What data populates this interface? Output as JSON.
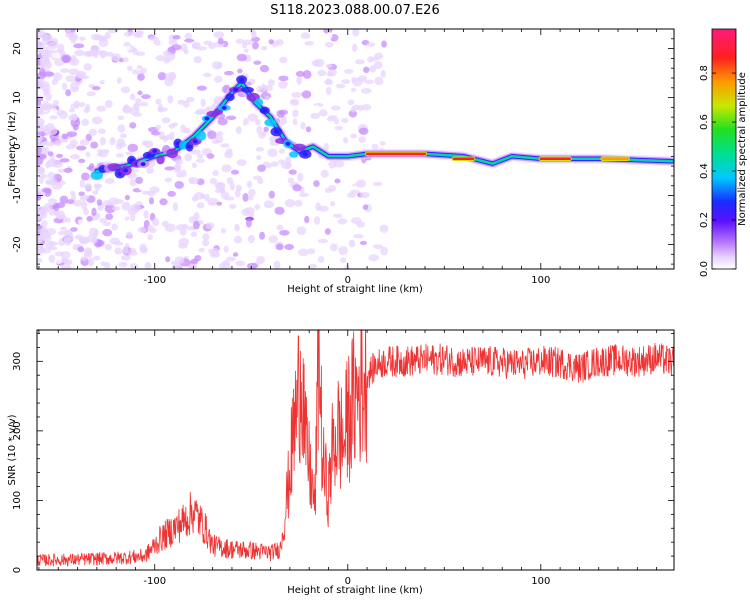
{
  "page_title": "S118.2023.088.00.07.E26",
  "colors": {
    "snr_line": "#ee3333",
    "colormap": [
      "#ffffff",
      "#e8d4ff",
      "#c78cff",
      "#8a2be2",
      "#2b1cff",
      "#00c8ff",
      "#00e0a0",
      "#20e020",
      "#c8e800",
      "#ff9a00",
      "#ff2020",
      "#ff1a7a"
    ]
  },
  "chart_data": [
    {
      "type": "heatmap",
      "xlabel": "Height of straight line (km)",
      "ylabel": "Frequency (Hz)",
      "xlim": [
        -161,
        169
      ],
      "ylim": [
        -25,
        24
      ],
      "xticks": [
        -100,
        0,
        100
      ],
      "yticks": [
        -20,
        -10,
        0,
        10,
        20
      ],
      "colorbar": {
        "label": "Normalized spectral amplitude",
        "range": [
          0.0,
          0.98
        ],
        "ticks": [
          0.0,
          0.2,
          0.4,
          0.6,
          0.8
        ]
      },
      "signal_track": [
        {
          "x": -130,
          "y": -5
        },
        {
          "x": -115,
          "y": -4
        },
        {
          "x": -100,
          "y": -2
        },
        {
          "x": -90,
          "y": -1
        },
        {
          "x": -80,
          "y": 2
        },
        {
          "x": -70,
          "y": 6
        },
        {
          "x": -60,
          "y": 11
        },
        {
          "x": -55,
          "y": 13
        },
        {
          "x": -48,
          "y": 9
        },
        {
          "x": -40,
          "y": 6
        },
        {
          "x": -32,
          "y": 1
        },
        {
          "x": -25,
          "y": -1
        },
        {
          "x": -18,
          "y": 0
        },
        {
          "x": -10,
          "y": -2
        },
        {
          "x": 0,
          "y": -2
        },
        {
          "x": 10,
          "y": -1.5
        },
        {
          "x": 40,
          "y": -1.5
        },
        {
          "x": 60,
          "y": -2
        },
        {
          "x": 75,
          "y": -3.5
        },
        {
          "x": 85,
          "y": -2
        },
        {
          "x": 100,
          "y": -2.5
        },
        {
          "x": 130,
          "y": -2.5
        },
        {
          "x": 168,
          "y": -3
        }
      ],
      "peak_segments": [
        {
          "x0": 10,
          "x1": 40,
          "y": -1.5,
          "amplitude": 0.95
        },
        {
          "x0": 55,
          "x1": 65,
          "y": -2.5,
          "amplitude": 0.9
        },
        {
          "x0": 100,
          "x1": 115,
          "y": -2.5,
          "amplitude": 0.9
        },
        {
          "x0": 132,
          "x1": 145,
          "y": -2.5,
          "amplitude": 0.85
        }
      ]
    },
    {
      "type": "line",
      "xlabel": "Height of straight line (km)",
      "ylabel": "SNR (10 * v/v)",
      "xlim": [
        -161,
        169
      ],
      "ylim": [
        0,
        345
      ],
      "xticks": [
        -100,
        0,
        100
      ],
      "yticks": [
        0,
        100,
        200,
        300
      ],
      "series": [
        {
          "x": [
            -161,
            -140,
            -120,
            -105,
            -97,
            -92,
            -85,
            -80,
            -74,
            -70,
            -60,
            -50,
            -40,
            -35,
            -33,
            -30,
            -28,
            -26,
            -24,
            -23,
            -22,
            -20,
            -17,
            -15,
            -13,
            -10,
            -8,
            -5,
            -2,
            0,
            3,
            6,
            10,
            15,
            20,
            30,
            40,
            50,
            60,
            70,
            80,
            90,
            100,
            110,
            120,
            130,
            140,
            150,
            160,
            169
          ],
          "y": [
            14,
            15,
            17,
            20,
            45,
            55,
            70,
            85,
            60,
            35,
            30,
            28,
            25,
            30,
            70,
            140,
            200,
            240,
            300,
            250,
            180,
            150,
            90,
            330,
            150,
            110,
            170,
            200,
            180,
            220,
            240,
            260,
            280,
            295,
            300,
            300,
            302,
            303,
            298,
            300,
            298,
            295,
            300,
            298,
            290,
            300,
            302,
            300,
            305,
            298
          ]
        }
      ]
    }
  ]
}
